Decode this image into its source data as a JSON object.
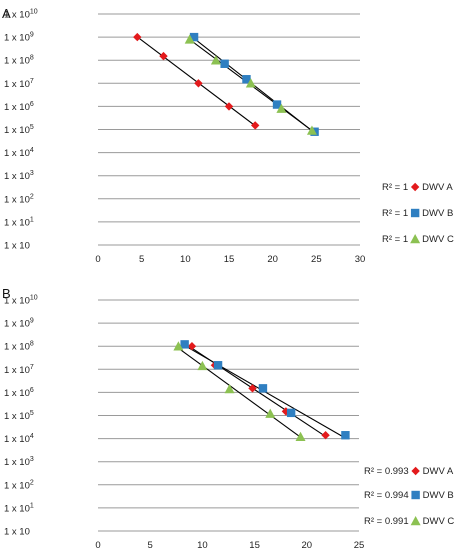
{
  "colors": {
    "DWV A": "#e31a1c",
    "DWV B": "#2f7fc1",
    "DWV C": "#8cc152",
    "gridline": "#9a9a9a",
    "fit_line": "#000000"
  },
  "chart_data": [
    {
      "type": "scatter",
      "panel_label": "A",
      "title": "",
      "xlabel": "",
      "ylabel": "",
      "xlim": [
        0,
        30
      ],
      "x_ticks": [
        "0",
        "5",
        "10",
        "15",
        "20",
        "25",
        "30"
      ],
      "x_tick_values": [
        0,
        5,
        10,
        15,
        20,
        25,
        30
      ],
      "y_scale": "log",
      "y_ticks": [
        {
          "mantissa": "1 x 10",
          "exp": "10",
          "value": 10000000000
        },
        {
          "mantissa": "1 x 10",
          "exp": "9",
          "value": 1000000000
        },
        {
          "mantissa": "1 x 10",
          "exp": "8",
          "value": 100000000
        },
        {
          "mantissa": "1 x 10",
          "exp": "7",
          "value": 10000000
        },
        {
          "mantissa": "1 x 10",
          "exp": "6",
          "value": 1000000
        },
        {
          "mantissa": "1 x 10",
          "exp": "5",
          "value": 100000
        },
        {
          "mantissa": "1 x 10",
          "exp": "4",
          "value": 10000
        },
        {
          "mantissa": "1 x 10",
          "exp": "3",
          "value": 1000
        },
        {
          "mantissa": "1 x 10",
          "exp": "2",
          "value": 100
        },
        {
          "mantissa": "1 x 10",
          "exp": "1",
          "value": 10
        },
        {
          "mantissa": "1 x 10",
          "exp": "",
          "value": 1
        }
      ],
      "grid": true,
      "legend_position": "right",
      "series": [
        {
          "name": "DWV A",
          "r2": "R² = 1",
          "marker": "diamond",
          "points": [
            [
              4.5,
              1000000000
            ],
            [
              7.5,
              150000000
            ],
            [
              11.5,
              10000000
            ],
            [
              15,
              1000000
            ],
            [
              18,
              150000
            ]
          ]
        },
        {
          "name": "DWV B",
          "r2": "R² = 1",
          "marker": "square",
          "points": [
            [
              11,
              1000000000
            ],
            [
              14.5,
              70000000
            ],
            [
              17,
              15000000
            ],
            [
              20.5,
              1200000
            ],
            [
              24.8,
              80000
            ]
          ]
        },
        {
          "name": "DWV C",
          "r2": "R² = 1",
          "marker": "triangle",
          "points": [
            [
              10.5,
              800000000
            ],
            [
              13.5,
              100000000
            ],
            [
              17.5,
              10000000
            ],
            [
              21,
              800000
            ],
            [
              24.5,
              90000
            ]
          ]
        }
      ]
    },
    {
      "type": "scatter",
      "panel_label": "B",
      "title": "",
      "xlabel": "",
      "ylabel": "",
      "xlim": [
        0,
        25
      ],
      "x_ticks": [
        "0",
        "5",
        "10",
        "15",
        "20",
        "25"
      ],
      "x_tick_values": [
        0,
        5,
        10,
        15,
        20,
        25
      ],
      "y_scale": "log",
      "y_ticks": [
        {
          "mantissa": "1 x 10",
          "exp": "10",
          "value": 10000000000
        },
        {
          "mantissa": "1 x 10",
          "exp": "9",
          "value": 1000000000
        },
        {
          "mantissa": "1 x 10",
          "exp": "8",
          "value": 100000000
        },
        {
          "mantissa": "1 x 10",
          "exp": "7",
          "value": 10000000
        },
        {
          "mantissa": "1 x 10",
          "exp": "6",
          "value": 1000000
        },
        {
          "mantissa": "1 x 10",
          "exp": "5",
          "value": 100000
        },
        {
          "mantissa": "1 x 10",
          "exp": "4",
          "value": 10000
        },
        {
          "mantissa": "1 x 10",
          "exp": "3",
          "value": 1000
        },
        {
          "mantissa": "1 x 10",
          "exp": "2",
          "value": 100
        },
        {
          "mantissa": "1 x 10",
          "exp": "1",
          "value": 10
        },
        {
          "mantissa": "1 x 10",
          "exp": "",
          "value": 1
        }
      ],
      "grid": true,
      "legend_position": "right",
      "series": [
        {
          "name": "DWV A",
          "r2": "R² = 0.993",
          "marker": "diamond",
          "points": [
            [
              9,
              100000000
            ],
            [
              11.2,
              15000000
            ],
            [
              14.8,
              1500000
            ],
            [
              18,
              150000
            ],
            [
              21.8,
              14000
            ]
          ]
        },
        {
          "name": "DWV B",
          "r2": "R² = 0.994",
          "marker": "square",
          "points": [
            [
              8.3,
              120000000
            ],
            [
              11.5,
              15000000
            ],
            [
              15.8,
              1500000
            ],
            [
              18.5,
              130000
            ],
            [
              23.7,
              14000
            ]
          ]
        },
        {
          "name": "DWV C",
          "r2": "R² = 0.991",
          "marker": "triangle",
          "points": [
            [
              7.7,
              100000000
            ],
            [
              10,
              14000000
            ],
            [
              12.6,
              1400000
            ],
            [
              16.5,
              120000
            ],
            [
              19.4,
              12000
            ]
          ]
        }
      ]
    }
  ]
}
